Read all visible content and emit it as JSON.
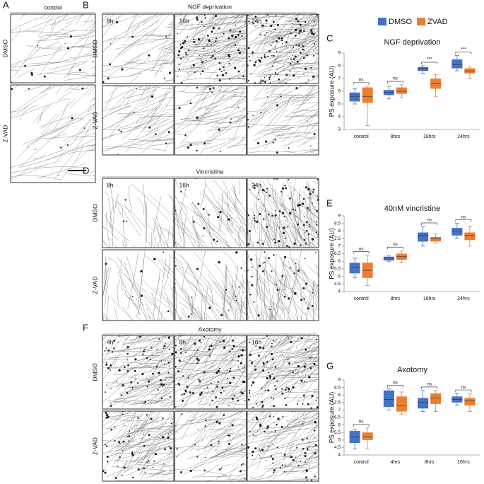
{
  "image_panels": [
    {
      "letter": "A",
      "title": "control",
      "rows": [
        "DMSO",
        "Z-VAD"
      ]
    },
    {
      "letter": "B",
      "title": "NGF deprivation",
      "rows": [
        "DMSO",
        "Z-VAD"
      ],
      "columns": [
        "8h",
        "16h",
        "24h"
      ]
    },
    {
      "letter": "D",
      "title": "Vincristine",
      "rows": [
        "DMSO",
        "Z-VAD"
      ],
      "columns": [
        "8h",
        "16h",
        "24h"
      ]
    },
    {
      "letter": "F",
      "title": "Axotomy",
      "rows": [
        "DMSO",
        "Z-VAD"
      ],
      "columns": [
        "4h",
        "8h",
        "16h"
      ]
    }
  ],
  "chart_data": [
    {
      "type": "box",
      "panel_label": "C",
      "title": "NGF deprivation",
      "ylabel": "PS exposure (AU)",
      "categories": [
        "control",
        "8hrs",
        "16hrs",
        "24hrs"
      ],
      "annotations": [
        "ns",
        "ns",
        "***",
        "***"
      ],
      "ylim": [
        3,
        9
      ],
      "yticks": [
        3,
        4,
        5,
        6,
        7,
        8,
        9
      ],
      "series": [
        {
          "name": "DMSO",
          "color": "#4472c4",
          "min": [
            5.0,
            5.4,
            7.4,
            7.6
          ],
          "q1": [
            5.2,
            5.7,
            7.6,
            7.8
          ],
          "median": [
            5.6,
            5.9,
            7.8,
            8.1
          ],
          "q3": [
            5.9,
            6.1,
            7.9,
            8.5
          ],
          "max": [
            6.2,
            6.4,
            8.0,
            8.8
          ]
        },
        {
          "name": "ZVAD",
          "color": "#ed7d31",
          "min": [
            3.3,
            5.5,
            5.6,
            7.0
          ],
          "q1": [
            5.1,
            5.8,
            6.2,
            7.4
          ],
          "median": [
            5.6,
            6.0,
            6.6,
            7.6
          ],
          "q3": [
            6.3,
            6.3,
            7.0,
            7.8
          ],
          "max": [
            6.4,
            6.5,
            7.3,
            7.9
          ]
        }
      ]
    },
    {
      "type": "box",
      "panel_label": "E",
      "title": "40nM vincristine",
      "ylabel": "PS exposure (AU)",
      "categories": [
        "control",
        "8hrs",
        "16hrs",
        "24hrs"
      ],
      "annotations": [
        "ns",
        "ns",
        "ns",
        "ns"
      ],
      "ylim": [
        4,
        9
      ],
      "yticks": [
        4,
        4.5,
        5,
        5.5,
        6,
        6.5,
        7,
        7.5,
        8,
        8.5,
        9
      ],
      "series": [
        {
          "color": "#4472c4",
          "min": [
            4.9,
            6.0,
            7.0,
            7.5
          ],
          "q1": [
            5.2,
            6.05,
            7.3,
            7.7
          ],
          "median": [
            5.6,
            6.2,
            7.7,
            8.0
          ],
          "q3": [
            5.9,
            6.3,
            7.9,
            8.2
          ],
          "max": [
            6.2,
            6.35,
            8.3,
            8.5
          ]
        },
        {
          "color": "#ed7d31",
          "min": [
            4.4,
            5.9,
            7.2,
            7.0
          ],
          "q1": [
            4.9,
            6.1,
            7.3,
            7.4
          ],
          "median": [
            5.4,
            6.3,
            7.5,
            7.7
          ],
          "q3": [
            5.9,
            6.5,
            7.6,
            7.9
          ],
          "max": [
            6.4,
            6.7,
            7.8,
            8.3
          ]
        }
      ]
    },
    {
      "type": "box",
      "panel_label": "G",
      "title": "Axotomy",
      "ylabel": "PS exposure (AU)",
      "categories": [
        "control",
        "4hrs",
        "8hrs",
        "16hrs"
      ],
      "annotations": [
        "ns",
        "ns",
        "ns",
        "ns"
      ],
      "ylim": [
        4,
        9
      ],
      "yticks": [
        4,
        4.5,
        5,
        5.5,
        6,
        6.5,
        7,
        7.5,
        8,
        8.5,
        9
      ],
      "series": [
        {
          "color": "#4472c4",
          "min": [
            4.4,
            7.0,
            6.9,
            7.3
          ],
          "q1": [
            4.8,
            7.2,
            7.1,
            7.5
          ],
          "median": [
            5.2,
            7.7,
            7.5,
            7.7
          ],
          "q3": [
            5.6,
            8.3,
            7.8,
            7.9
          ],
          "max": [
            5.7,
            8.4,
            8.3,
            8.1
          ]
        },
        {
          "color": "#ed7d31",
          "min": [
            4.4,
            6.7,
            6.9,
            6.9
          ],
          "q1": [
            5.0,
            6.9,
            7.4,
            7.3
          ],
          "median": [
            5.2,
            7.3,
            7.8,
            7.6
          ],
          "q3": [
            5.5,
            7.9,
            8.1,
            7.8
          ],
          "max": [
            5.8,
            8.2,
            8.3,
            8.1
          ]
        }
      ]
    }
  ]
}
